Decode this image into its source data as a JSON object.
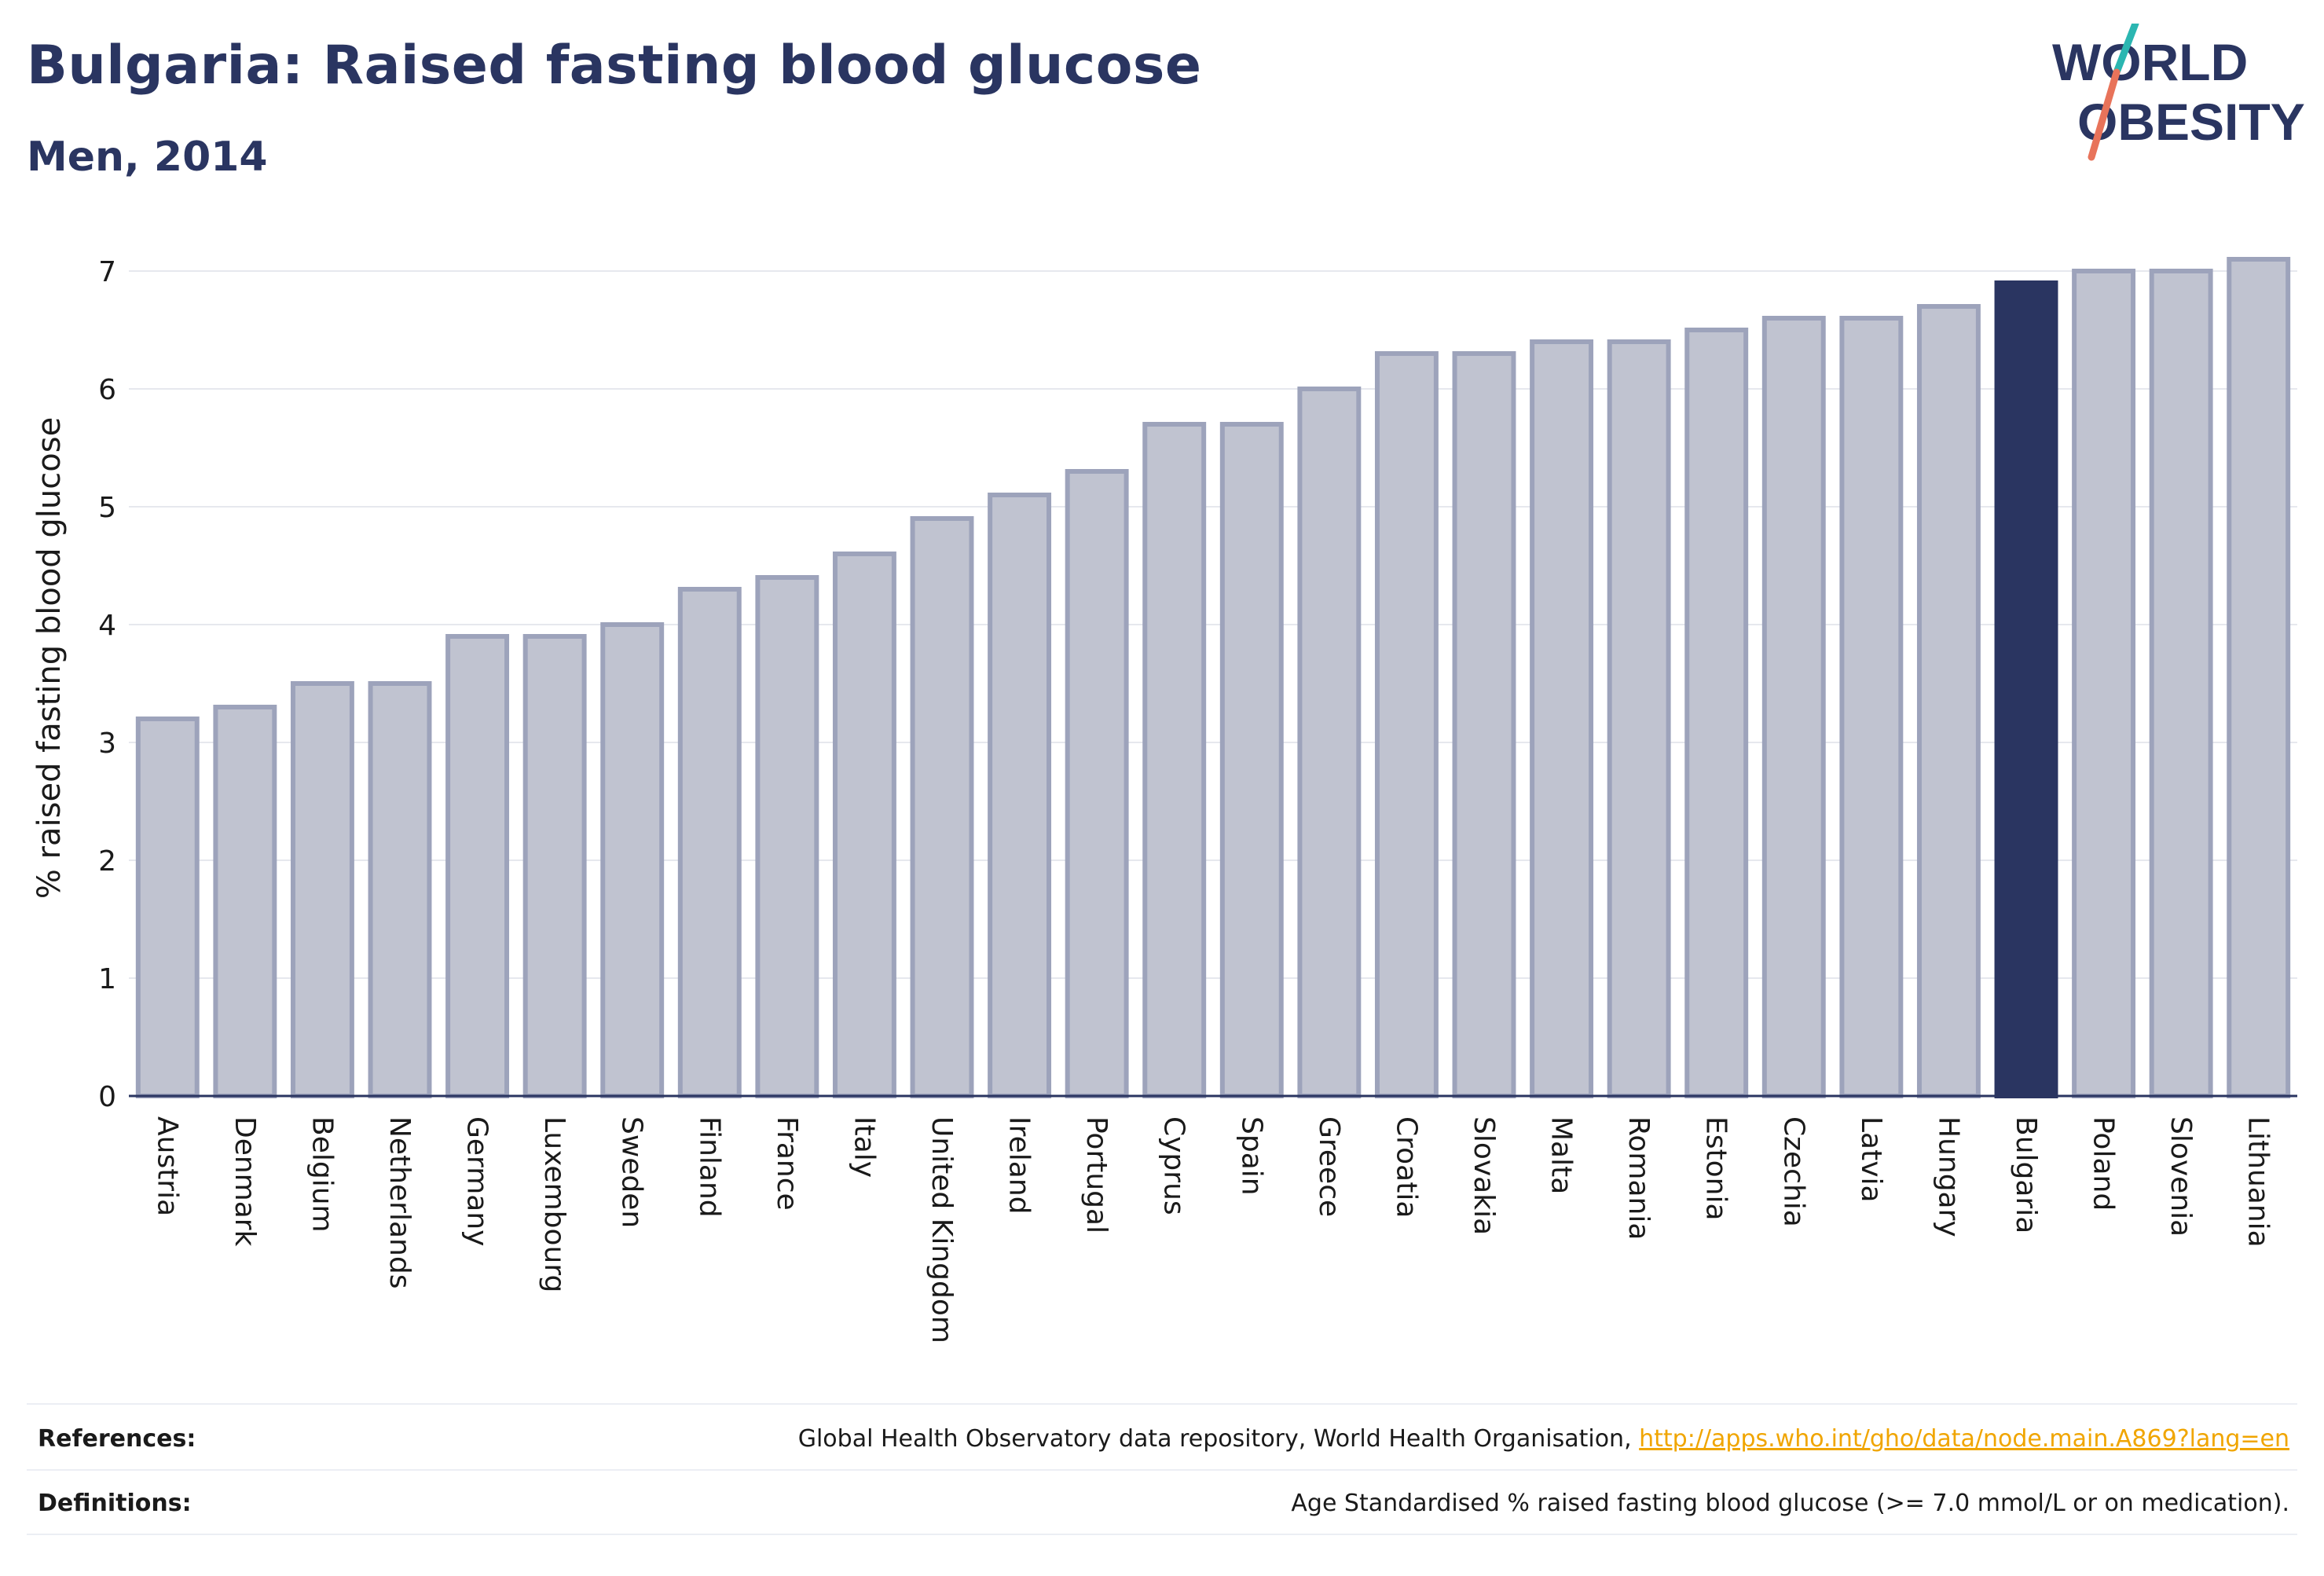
{
  "header": {
    "title": "Bulgaria: Raised fasting blood glucose",
    "subtitle": "Men, 2014"
  },
  "logo": {
    "line1": "WORLD",
    "line2": "OBESITY",
    "colors": {
      "text": "#2a3561",
      "slash_teal": "#2bb6b1",
      "slash_coral": "#e8735a"
    }
  },
  "chart_data": {
    "type": "bar",
    "title": "Bulgaria: Raised fasting blood glucose",
    "subtitle": "Men, 2014",
    "xlabel": "",
    "ylabel": "% raised fasting blood glucose",
    "ylim": [
      0,
      7.3
    ],
    "yticks": [
      0,
      1,
      2,
      3,
      4,
      5,
      6,
      7
    ],
    "grid": true,
    "highlight": "Bulgaria",
    "colors": {
      "bar": "#c0c3d0",
      "bar_border": "#9da3bb",
      "highlight": "#2a3561",
      "grid": "#e6e8ee",
      "axis": "#2a3561"
    },
    "categories": [
      "Austria",
      "Denmark",
      "Belgium",
      "Netherlands",
      "Germany",
      "Luxembourg",
      "Sweden",
      "Finland",
      "France",
      "Italy",
      "United Kingdom",
      "Ireland",
      "Portugal",
      "Cyprus",
      "Spain",
      "Greece",
      "Croatia",
      "Slovakia",
      "Malta",
      "Romania",
      "Estonia",
      "Czechia",
      "Latvia",
      "Hungary",
      "Bulgaria",
      "Poland",
      "Slovenia",
      "Lithuania"
    ],
    "values": [
      3.2,
      3.3,
      3.5,
      3.5,
      3.9,
      3.9,
      4.0,
      4.3,
      4.4,
      4.6,
      4.9,
      5.1,
      5.3,
      5.7,
      5.7,
      6.0,
      6.3,
      6.3,
      6.4,
      6.4,
      6.5,
      6.6,
      6.6,
      6.7,
      6.9,
      7.0,
      7.0,
      7.1
    ]
  },
  "footer": {
    "references_label": "References:",
    "references_text": "Global Health Observatory data repository, World Health Organisation, ",
    "references_link": "http://apps.who.int/gho/data/node.main.A869?lang=en",
    "definitions_label": "Definitions:",
    "definitions_text": "Age Standardised % raised fasting blood glucose (>= 7.0 mmol/L or on medication)."
  }
}
